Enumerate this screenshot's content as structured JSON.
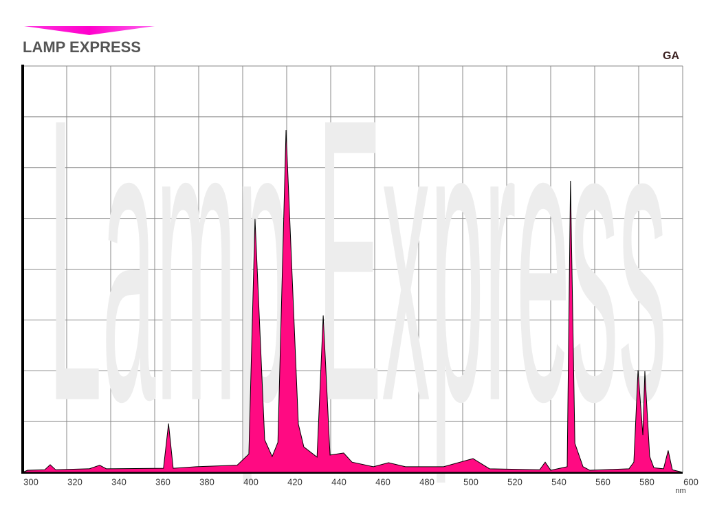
{
  "chart_data": {
    "type": "area",
    "title": "LAMP EXPRESS",
    "watermark": "Lamp Express",
    "series_label": "GA",
    "x_label": "nm",
    "color": "#ff0a82",
    "x": [
      300,
      302.2,
      310,
      312.5,
      315,
      330.3,
      335,
      338,
      364,
      366.3,
      368.4,
      378.8,
      397.5,
      402.8,
      405.6,
      410,
      413.4,
      416,
      419.7,
      425.3,
      427.8,
      433.8,
      436.6,
      439.7,
      445.9,
      449.7,
      459.4,
      466.3,
      474,
      491.3,
      504.7,
      512.2,
      535,
      537.5,
      540,
      547.5,
      549,
      551,
      554.7,
      557.8,
      575.6,
      577.8,
      579.7,
      581.9,
      582.8,
      585,
      586.9,
      591.3,
      593.4,
      595.3,
      600
    ],
    "values": [
      0,
      0.04,
      0.05,
      0.15,
      0.05,
      0.07,
      0.14,
      0.07,
      0.08,
      0.96,
      0.08,
      0.11,
      0.14,
      0.36,
      4.99,
      0.64,
      0.31,
      0.59,
      6.74,
      0.95,
      0.5,
      0.3,
      3.09,
      0.34,
      0.38,
      0.2,
      0.11,
      0.19,
      0.11,
      0.11,
      0.27,
      0.07,
      0.05,
      0.2,
      0.04,
      0.11,
      5.74,
      0.57,
      0.11,
      0.04,
      0.07,
      0.2,
      2.01,
      0.73,
      1.99,
      0.31,
      0.09,
      0.07,
      0.43,
      0.05,
      0
    ],
    "xlim": [
      300,
      600
    ],
    "xticks": [
      300,
      320,
      340,
      360,
      380,
      400,
      420,
      440,
      460,
      480,
      500,
      520,
      540,
      560,
      580,
      600
    ],
    "ylim": [
      0,
      8
    ],
    "yticks": [
      0,
      1,
      2,
      3,
      4,
      5,
      6,
      7,
      8
    ],
    "grid": true
  }
}
